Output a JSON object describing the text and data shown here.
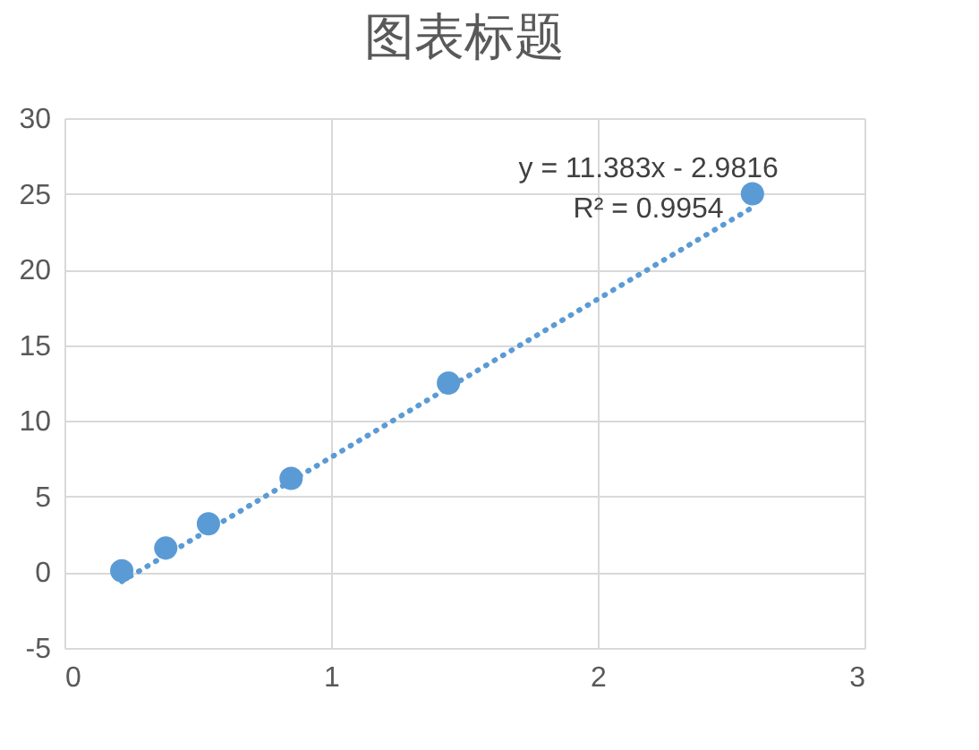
{
  "chart_data": {
    "type": "scatter",
    "title": "图表标题",
    "x": [
      0.215,
      0.38,
      0.54,
      0.85,
      1.44,
      2.58
    ],
    "series": [
      {
        "color": "#5b9bd5",
        "values": [
          0.1,
          1.6,
          3.2,
          6.2,
          12.5,
          25.0
        ]
      },
      {
        "type": "line",
        "color": "#5b9bd5",
        "line_style": "dotted",
        "marker": "none",
        "x": [
          0.215,
          2.58
        ],
        "values": [
          -0.6,
          24.1
        ]
      }
    ],
    "annotations": [
      "y = 11.383x - 2.9816",
      "R² = 0.9954"
    ],
    "xlim": [
      0,
      3
    ],
    "xticks": [
      0,
      1,
      2,
      3
    ],
    "ylim": [
      -5,
      30
    ],
    "yticks": [
      -5,
      0,
      5,
      10,
      15,
      20,
      25,
      30
    ],
    "grid": true,
    "marker": "circle"
  }
}
